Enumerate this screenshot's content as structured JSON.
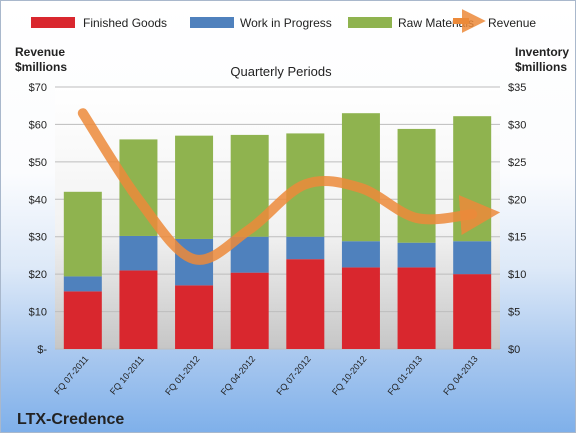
{
  "company": "LTX-Credence",
  "chart_data": {
    "type": "bar",
    "title": "Quarterly Periods",
    "left_axis_label": [
      "Revenue",
      "$millions"
    ],
    "right_axis_label": [
      "Inventory",
      "$millions"
    ],
    "categories": [
      "FQ 07-2011",
      "FQ 10-2011",
      "FQ 01-2012",
      "FQ 04-2012",
      "FQ 07-2012",
      "FQ 10-2012",
      "FQ 01-2013",
      "FQ 04-2013"
    ],
    "left_ticks": [
      "$-",
      "$10",
      "$20",
      "$30",
      "$40",
      "$50",
      "$60",
      "$70"
    ],
    "right_ticks": [
      "$0",
      "$5",
      "$10",
      "$15",
      "$20",
      "$25",
      "$30",
      "$35"
    ],
    "left_ylim": [
      0,
      70
    ],
    "right_ylim": [
      0,
      35
    ],
    "stacked": true,
    "series": [
      {
        "name": "Finished Goods",
        "axis": "right",
        "color": "#d9272e",
        "values": [
          7.7,
          10.5,
          8.5,
          10.2,
          12.0,
          10.9,
          10.9,
          10.0
        ]
      },
      {
        "name": "Work in Progress",
        "axis": "right",
        "color": "#4f81bd",
        "values": [
          2.0,
          4.6,
          6.2,
          4.8,
          3.0,
          3.5,
          3.3,
          4.4
        ]
      },
      {
        "name": "Raw Materials",
        "axis": "right",
        "color": "#8fb34f",
        "values": [
          11.3,
          12.9,
          13.8,
          13.6,
          13.8,
          17.1,
          15.2,
          16.7
        ]
      }
    ],
    "line_series": {
      "name": "Revenue",
      "axis": "left",
      "color": "#ec8a3a",
      "values": [
        63,
        40,
        24,
        32,
        44,
        43,
        35,
        36
      ]
    },
    "legend_position": "top",
    "grid": true
  }
}
